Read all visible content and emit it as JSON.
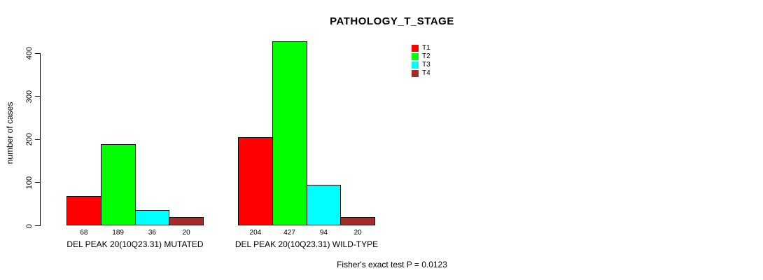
{
  "title": "PATHOLOGY_T_STAGE",
  "footer": "Fisher's exact test P = 0.0123",
  "chart_data": {
    "type": "bar",
    "title": "PATHOLOGY_T_STAGE",
    "ylabel": "number of cases",
    "xlabel": "",
    "ylim": [
      0,
      400
    ],
    "yticks": [
      0,
      100,
      200,
      300,
      400
    ],
    "grid": false,
    "legend_position": "top-right",
    "series": [
      "T1",
      "T2",
      "T3",
      "T4"
    ],
    "colors": [
      "#FF0000",
      "#00FF00",
      "#00FFFF",
      "#A52A2A"
    ],
    "categories": [
      "DEL PEAK 20(10Q23.31) MUTATED",
      "DEL PEAK 20(10Q23.31) WILD-TYPE"
    ],
    "groups": [
      {
        "label": "DEL PEAK 20(10Q23.31) MUTATED",
        "values": [
          68,
          189,
          36,
          20
        ]
      },
      {
        "label": "DEL PEAK 20(10Q23.31) WILD-TYPE",
        "values": [
          204,
          427,
          94,
          20
        ]
      }
    ],
    "bar_value_labels": true,
    "annotation": "Fisher's exact test P = 0.0123"
  }
}
